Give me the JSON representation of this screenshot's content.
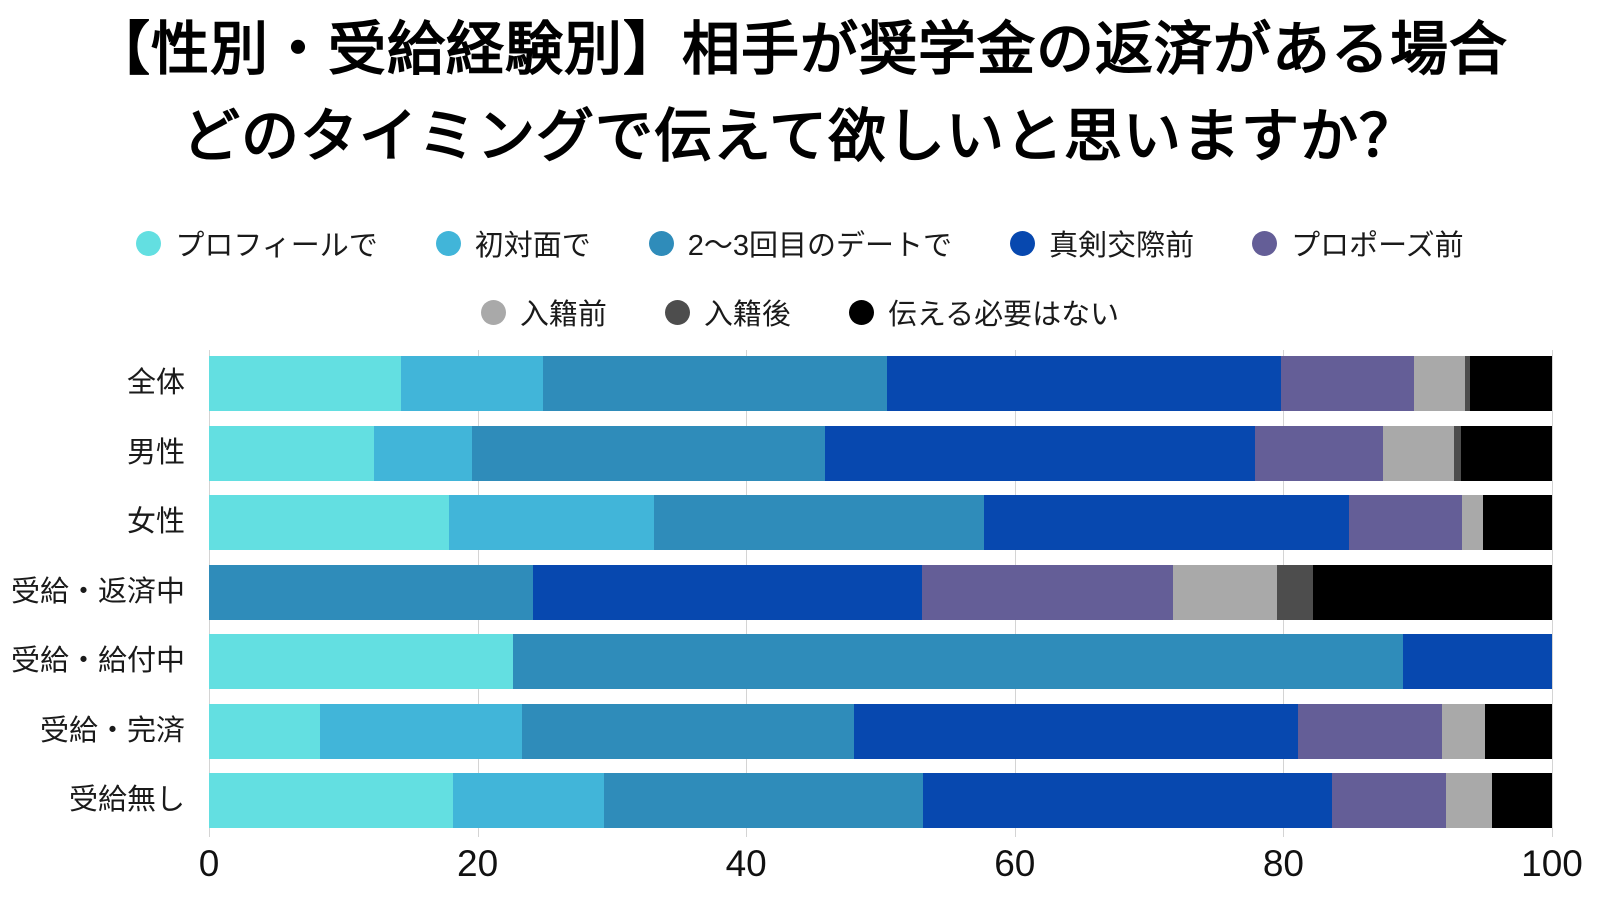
{
  "title": {
    "line1": "【性別・受給経験別】相手が奨学金の返済がある場合",
    "line2": "どのタイミングで伝えて欲しいと思いますか？"
  },
  "chart_data": {
    "type": "bar",
    "orientation": "horizontal",
    "stacked": true,
    "unit": "percent",
    "title": "【性別・受給経験別】相手が奨学金の返済がある場合 どのタイミングで伝えて欲しいと思いますか？",
    "categories": [
      "全体",
      "男性",
      "女性",
      "受給・返済中",
      "受給・給付中",
      "受給・完済",
      "受給無し"
    ],
    "series": [
      {
        "name": "プロフィールで",
        "color": "#63dfe1",
        "values": [
          14.3,
          12.3,
          17.9,
          0,
          22.6,
          8.3,
          18.2
        ]
      },
      {
        "name": "初対面で",
        "color": "#41b5d9",
        "values": [
          10.6,
          7.3,
          15.2,
          0,
          0,
          15.0,
          11.2
        ]
      },
      {
        "name": "2〜3回目のデートで",
        "color": "#2f8cba",
        "values": [
          25.6,
          26.3,
          24.6,
          24.1,
          66.3,
          24.7,
          23.8
        ]
      },
      {
        "name": "真剣交際前",
        "color": "#0748af",
        "values": [
          29.3,
          32.0,
          27.2,
          29.0,
          11.1,
          33.1,
          30.4
        ]
      },
      {
        "name": "プロポーズ前",
        "color": "#645e97",
        "values": [
          9.9,
          9.5,
          8.4,
          18.7,
          0,
          10.7,
          8.5
        ]
      },
      {
        "name": "入籍前",
        "color": "#a9a9a9",
        "values": [
          3.8,
          5.3,
          1.6,
          7.7,
          0,
          3.2,
          3.4
        ]
      },
      {
        "name": "入籍後",
        "color": "#4d4d4d",
        "values": [
          0.4,
          0.5,
          0,
          2.7,
          0,
          0,
          0
        ]
      },
      {
        "name": "伝える必要はない",
        "color": "#000000",
        "values": [
          6.1,
          6.8,
          5.1,
          17.8,
          0,
          5.0,
          4.5
        ]
      }
    ],
    "x_ticks": [
      0,
      20,
      40,
      60,
      80,
      100
    ],
    "xlim": [
      0,
      100
    ],
    "grid": true,
    "legend_position": "top",
    "legend_rows": [
      [
        0,
        1,
        2,
        3,
        4
      ],
      [
        5,
        6,
        7
      ]
    ]
  }
}
